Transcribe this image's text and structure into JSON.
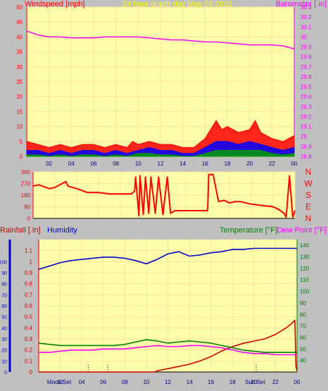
{
  "header": {
    "left_label": "Windspeed [mph]",
    "center_label": "24 hour graph day   May 06 2022",
    "right_label": "Barometer [.in]"
  },
  "colors": {
    "background": "#c0c0c0",
    "plot_bg": "#ffffaa",
    "grid": "#ffe0a0",
    "barometer": "#ff00ff",
    "wind_gust": "#ff0000",
    "wind_avg": "#0000ff",
    "wind_low": "#00a000",
    "direction": "#ff0000",
    "rain": "#cc0000",
    "humidity": "#0000cc",
    "temperature": "#008000",
    "dewpoint": "#ff00ff",
    "header_title": "#ffff00"
  },
  "chart_data": [
    {
      "type": "line",
      "title": "24 hour graph day   May 06 2022",
      "ylabel": "Windspeed [mph]",
      "y2label": "Barometer [.in]",
      "ylim": [
        0,
        50
      ],
      "y2lim": [
        28.8,
        30.3
      ],
      "yticks": [
        "0",
        "5",
        "10",
        "15",
        "20",
        "25",
        "30",
        "35",
        "40",
        "45",
        "50"
      ],
      "y2ticks": [
        "28.8",
        "28.9",
        "29",
        "29.1",
        "29.2",
        "29.3",
        "29.4",
        "29.5",
        "29.6",
        "29.7",
        "29.8",
        "29.9",
        "30",
        "30.1",
        "30.2",
        "30.3"
      ],
      "xticks": [
        "02",
        "04",
        "06",
        "08",
        "10",
        "12",
        "14",
        "16",
        "18",
        "20",
        "22",
        "00"
      ],
      "grid": true,
      "series": [
        {
          "name": "Barometer [.in]",
          "axis": "right",
          "x": [
            0,
            1,
            2,
            3,
            4,
            5,
            6,
            7,
            8,
            9,
            10,
            11,
            12,
            13,
            14,
            15,
            16,
            17,
            18,
            19,
            20,
            21,
            22,
            23,
            24
          ],
          "values": [
            30.06,
            30.02,
            30.0,
            30.0,
            29.99,
            29.99,
            29.99,
            30.0,
            30.0,
            30.0,
            30.0,
            29.99,
            29.98,
            29.97,
            29.97,
            29.96,
            29.95,
            29.95,
            29.94,
            29.93,
            29.92,
            29.92,
            29.92,
            29.91,
            29.88
          ]
        },
        {
          "name": "gust",
          "axis": "left",
          "x": [
            0,
            1,
            2,
            3,
            4,
            5,
            6,
            7,
            8,
            9,
            9.5,
            10,
            11,
            12,
            13,
            14,
            15,
            16,
            16.5,
            17,
            17.5,
            18,
            19,
            20,
            20.5,
            21,
            22,
            23,
            24
          ],
          "values": [
            5,
            4,
            3,
            4,
            3,
            4,
            4,
            3,
            4,
            3,
            5,
            4,
            5,
            4,
            4,
            3,
            3,
            6,
            9,
            12,
            9,
            10,
            8,
            9,
            12,
            8,
            6,
            5,
            7
          ]
        },
        {
          "name": "average",
          "axis": "left",
          "x": [
            0,
            1,
            2,
            3,
            4,
            5,
            6,
            7,
            8,
            9,
            10,
            11,
            12,
            13,
            14,
            15,
            16,
            17,
            18,
            19,
            20,
            21,
            22,
            23,
            24
          ],
          "values": [
            2,
            2,
            1,
            2,
            1,
            2,
            2,
            1,
            2,
            1,
            2,
            3,
            2,
            2,
            1,
            1,
            3,
            5,
            5,
            4,
            5,
            4,
            3,
            2,
            3
          ]
        },
        {
          "name": "low",
          "axis": "left",
          "x": [
            0,
            1,
            2,
            3,
            4,
            5,
            6,
            7,
            8,
            9,
            10,
            11,
            12,
            13,
            14,
            15,
            16,
            17,
            18,
            19,
            20,
            21,
            22,
            23,
            24
          ],
          "values": [
            0.5,
            0.5,
            0,
            0.5,
            0,
            0.5,
            0.5,
            0,
            0.5,
            0,
            1,
            1,
            0.5,
            0.5,
            0,
            0,
            1,
            2,
            2,
            2,
            2,
            2,
            1,
            0.5,
            1
          ]
        }
      ]
    },
    {
      "type": "line",
      "ylabel_right": [
        "N",
        "W",
        "S",
        "E",
        "N"
      ],
      "ylim": [
        0,
        360
      ],
      "yticks": [
        "0",
        "90",
        "180",
        "270",
        "360"
      ],
      "grid": true,
      "series": [
        {
          "name": "direction",
          "x": [
            0,
            0.5,
            1.5,
            2,
            3,
            3.2,
            4,
            5,
            6,
            7,
            8,
            9,
            9.3,
            9.4,
            9.7,
            9.8,
            10.1,
            10.3,
            10.6,
            10.8,
            11.2,
            11.5,
            11.9,
            12.3,
            12.6,
            13,
            13.5,
            14,
            14.5,
            15,
            15.5,
            16,
            16.1,
            16.5,
            17,
            17.5,
            18,
            18.5,
            19,
            20,
            21,
            22,
            22.5,
            23,
            23.2,
            23.5,
            23.8,
            24
          ],
          "values": [
            250,
            260,
            230,
            240,
            285,
            250,
            230,
            200,
            200,
            190,
            190,
            190,
            210,
            320,
            20,
            330,
            30,
            320,
            40,
            320,
            40,
            320,
            30,
            320,
            40,
            60,
            60,
            60,
            60,
            60,
            60,
            60,
            340,
            340,
            130,
            140,
            120,
            130,
            130,
            110,
            100,
            90,
            70,
            40,
            10,
            330,
            10,
            60
          ]
        }
      ]
    },
    {
      "type": "line",
      "ylabel_left": "Rainfall [.in]",
      "ylabel_left2": "Humidity",
      "ylabel_right": "Temperature [°F]",
      "ylabel_right2": "Dew Point [°F]",
      "ylim": [
        0,
        1.2
      ],
      "yticks": [
        "0",
        "0.1",
        "0.2",
        "0.3",
        "0.4",
        "0.5",
        "0.6",
        "0.7",
        "0.8",
        "0.9",
        "1",
        "1.1"
      ],
      "humidity_ticks": [
        "0",
        "10",
        "20",
        "30",
        "40",
        "50",
        "60",
        "70",
        "80",
        "90",
        "100"
      ],
      "y2lim": [
        30,
        145
      ],
      "y2ticks": [
        "40",
        "50",
        "60",
        "70",
        "80",
        "90",
        "100",
        "110",
        "120",
        "130",
        "140"
      ],
      "xticks": [
        "02",
        "04",
        "06",
        "08",
        "10",
        "12",
        "14",
        "16",
        "18",
        "20",
        "22",
        "00"
      ],
      "events": [
        "Moon Set",
        "Sun Set"
      ],
      "grid": true,
      "series": [
        {
          "name": "Rainfall [.in]",
          "x": [
            0,
            10.8,
            11,
            12,
            13,
            14,
            15,
            16,
            17,
            18,
            19,
            20,
            21,
            22,
            23,
            23.5,
            23.8,
            23.9,
            24
          ],
          "values": [
            0,
            0,
            0.01,
            0.03,
            0.05,
            0.07,
            0.1,
            0.14,
            0.19,
            0.23,
            0.26,
            0.28,
            0.3,
            0.34,
            0.4,
            0.44,
            0.47,
            0.05,
            0.01
          ]
        },
        {
          "name": "Humidity",
          "x": [
            0,
            1,
            2,
            3,
            4,
            5,
            6,
            7,
            8,
            9,
            10,
            11,
            12,
            13,
            14,
            15,
            16,
            17,
            18,
            19,
            20,
            21,
            22,
            23,
            24
          ],
          "values": [
            93,
            96,
            99,
            101,
            102,
            103,
            104,
            104,
            103,
            101,
            98,
            102,
            107,
            109,
            105,
            106,
            108,
            109,
            111,
            111,
            112,
            112,
            112,
            112,
            112
          ]
        },
        {
          "name": "Temperature [°F]",
          "x": [
            0,
            1,
            2,
            3,
            4,
            5,
            6,
            7,
            8,
            9,
            10,
            11,
            12,
            13,
            14,
            15,
            16,
            17,
            18,
            19,
            20,
            21,
            22,
            23,
            24
          ],
          "values": [
            55,
            54,
            53,
            53,
            53,
            53,
            53,
            53,
            54,
            56,
            58,
            57,
            55,
            56,
            57,
            56,
            55,
            53,
            51,
            49,
            48,
            47,
            47,
            47,
            47
          ]
        },
        {
          "name": "Dew Point [°F]",
          "x": [
            0,
            1,
            2,
            3,
            4,
            5,
            6,
            7,
            8,
            9,
            10,
            11,
            12,
            13,
            14,
            15,
            16,
            17,
            18,
            19,
            20,
            21,
            22,
            23,
            24
          ],
          "values": [
            47,
            47,
            48,
            49,
            49,
            49,
            50,
            50,
            50,
            51,
            52,
            53,
            52,
            52,
            53,
            53,
            52,
            51,
            49,
            47,
            46,
            46,
            45,
            45,
            45
          ]
        }
      ]
    }
  ]
}
